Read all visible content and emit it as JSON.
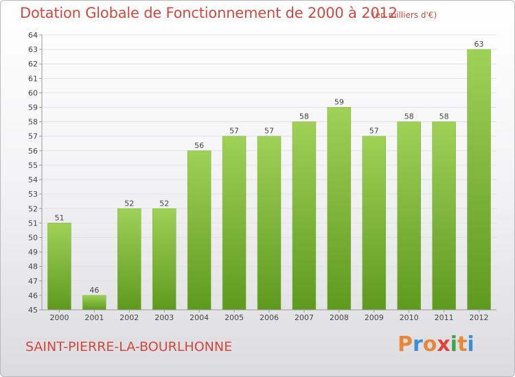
{
  "title": "Dotation Globale de Fonctionnement de 2000 à 2012",
  "subtitle": "(en milliers d'€)",
  "commune": "SAINT-PIERRE-LA-BOURLHONNE",
  "logo": {
    "letters": [
      "P",
      "r",
      "o",
      "x",
      "i",
      "t",
      "i"
    ],
    "colors": [
      "#e8863a",
      "#3a8fd6",
      "#e8863a",
      "#e2423a",
      "#3aa54a",
      "#e8863a",
      "#3a8fd6"
    ]
  },
  "colors": {
    "title": "#d2483c",
    "bar_light": "#9fd157",
    "bar_dark": "#5e9a1e",
    "axis": "#999999",
    "grid": "#e2e2e2"
  },
  "chart_data": {
    "type": "bar",
    "categories": [
      "2000",
      "2001",
      "2002",
      "2003",
      "2004",
      "2005",
      "2006",
      "2007",
      "2008",
      "2009",
      "2010",
      "2011",
      "2012"
    ],
    "values": [
      51,
      46,
      52,
      52,
      56,
      57,
      57,
      58,
      59,
      57,
      58,
      58,
      63
    ],
    "title": "Dotation Globale de Fonctionnement de 2000 à 2012",
    "subtitle": "(en milliers d'€)",
    "xlabel": "",
    "ylabel": "",
    "ylim": [
      45,
      64
    ],
    "yticks": [
      45,
      46,
      47,
      48,
      49,
      50,
      51,
      52,
      53,
      54,
      55,
      56,
      57,
      58,
      59,
      60,
      61,
      62,
      63,
      64
    ],
    "grid": true,
    "legend": "none"
  }
}
